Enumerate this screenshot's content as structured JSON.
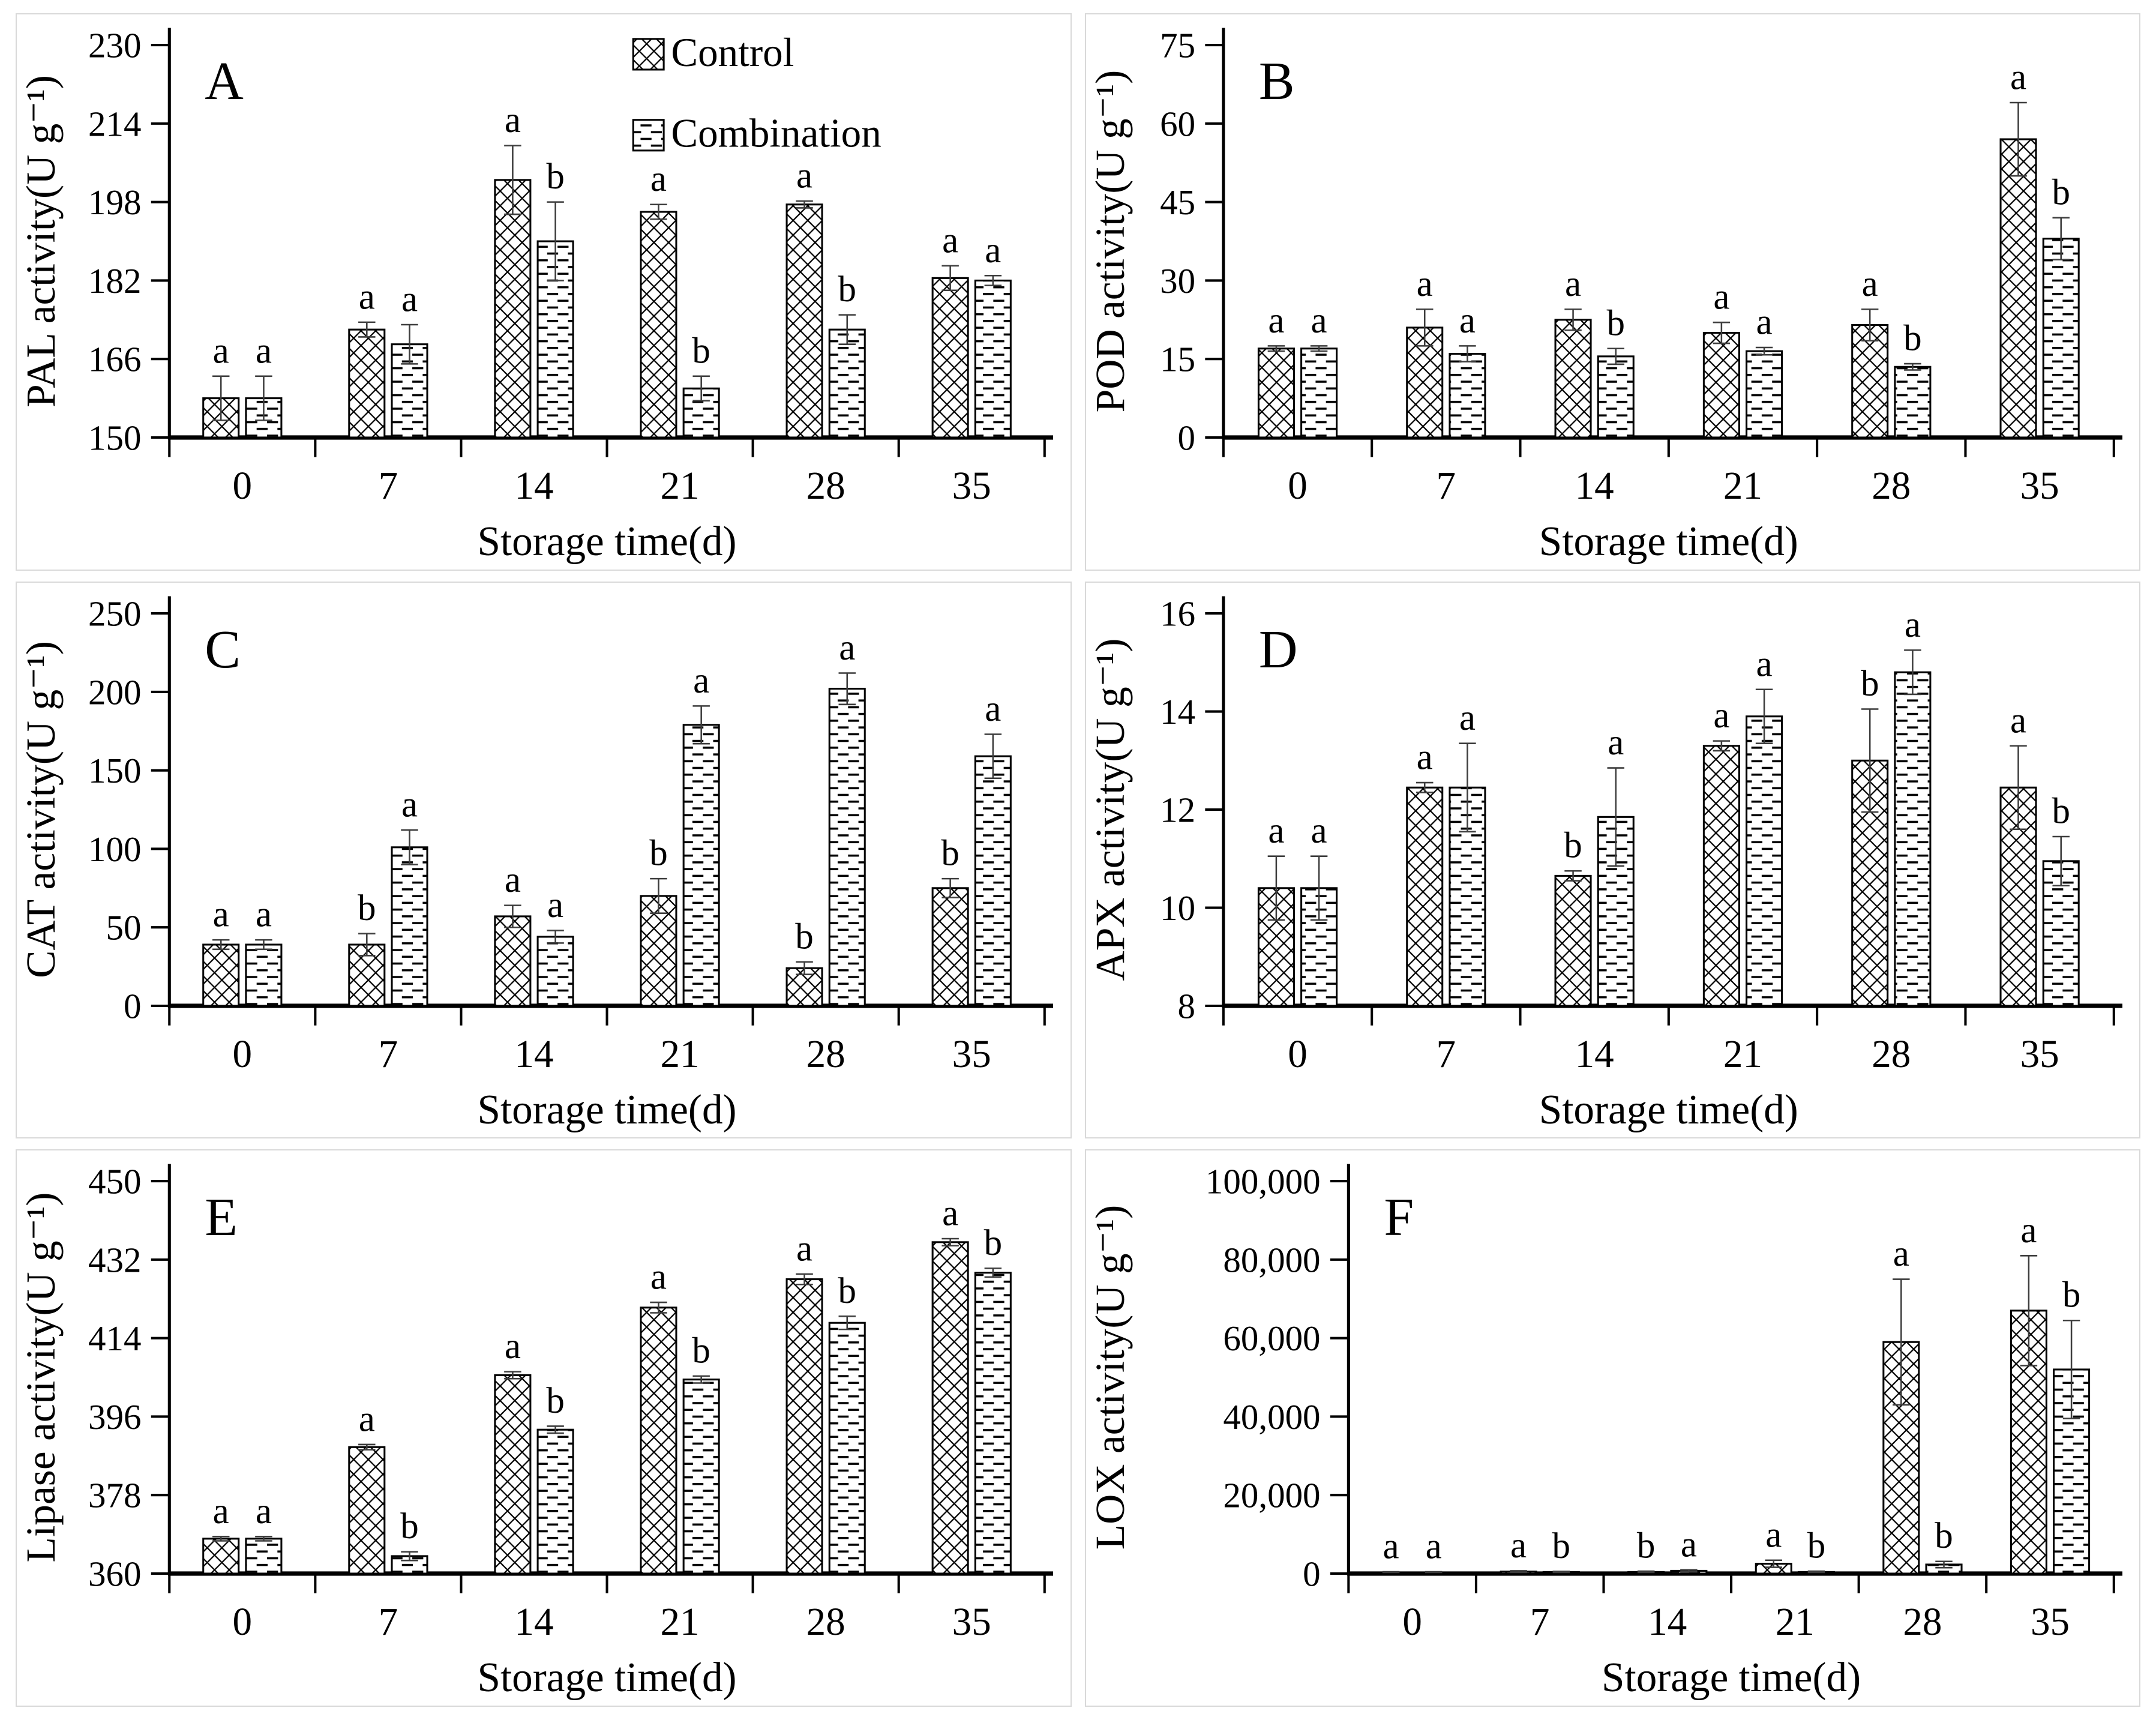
{
  "figure": {
    "xlabel": "Storage time(d)",
    "legend": {
      "position": "top-right-of-panel-A",
      "items": [
        {
          "name": "Control",
          "pattern": "crosshatch"
        },
        {
          "name": "Combination",
          "pattern": "horizontal-dash"
        }
      ]
    },
    "colors": {
      "foreground": "#000000",
      "background": "#ffffff",
      "panel_border": "#d9d9d9",
      "error_bar": "#3d3d3d"
    }
  },
  "chart_data": [
    {
      "type": "bar",
      "panel_label": "A",
      "ylabel": "PAL activity(U g⁻¹)",
      "xlabel": "Storage time(d)",
      "categories": [
        "0",
        "7",
        "14",
        "21",
        "28",
        "35"
      ],
      "ylim": [
        150,
        230
      ],
      "yticks": [
        150,
        166,
        182,
        198,
        214,
        230
      ],
      "ytick_labels": [
        "150",
        "166",
        "182",
        "198",
        "214",
        "230"
      ],
      "grid": false,
      "left_margin": 250,
      "show_legend": true,
      "series": [
        {
          "name": "Control",
          "pattern": "crosshatch",
          "values": [
            158,
            172,
            202.5,
            196,
            197.5,
            182.5
          ],
          "errors": [
            4.5,
            1.5,
            7,
            1.5,
            0.7,
            2.5
          ],
          "letters": [
            "a",
            "a",
            "a",
            "a",
            "a",
            "a"
          ]
        },
        {
          "name": "Combination",
          "pattern": "horizontal-dash",
          "values": [
            158,
            169,
            190,
            160,
            172,
            182
          ],
          "errors": [
            4.5,
            4,
            8,
            2.5,
            3,
            1
          ],
          "letters": [
            "a",
            "a",
            "b",
            "b",
            "b",
            "a"
          ]
        }
      ]
    },
    {
      "type": "bar",
      "panel_label": "B",
      "ylabel": "POD activity(U g⁻¹)",
      "xlabel": "Storage time(d)",
      "categories": [
        "0",
        "7",
        "14",
        "21",
        "28",
        "35"
      ],
      "ylim": [
        0,
        75
      ],
      "yticks": [
        0,
        15,
        30,
        45,
        60,
        75
      ],
      "ytick_labels": [
        "0",
        "15",
        "30",
        "45",
        "60",
        "75"
      ],
      "grid": false,
      "left_margin": 225,
      "show_legend": false,
      "series": [
        {
          "name": "Control",
          "pattern": "crosshatch",
          "values": [
            17,
            21,
            22.5,
            20,
            21.5,
            57
          ],
          "errors": [
            0.5,
            3.5,
            2,
            2,
            3,
            7
          ],
          "letters": [
            "a",
            "a",
            "a",
            "a",
            "a",
            "a"
          ]
        },
        {
          "name": "Combination",
          "pattern": "horizontal-dash",
          "values": [
            17,
            16,
            15.5,
            16.5,
            13.5,
            38
          ],
          "errors": [
            0.5,
            1.5,
            1.5,
            0.7,
            0.6,
            4
          ],
          "letters": [
            "a",
            "a",
            "b",
            "a",
            "b",
            "b"
          ]
        }
      ]
    },
    {
      "type": "bar",
      "panel_label": "C",
      "ylabel": "CAT activity(U g⁻¹)",
      "xlabel": "Storage time(d)",
      "categories": [
        "0",
        "7",
        "14",
        "21",
        "28",
        "35"
      ],
      "ylim": [
        0,
        250
      ],
      "yticks": [
        0,
        50,
        100,
        150,
        200,
        250
      ],
      "ytick_labels": [
        "0",
        "50",
        "100",
        "150",
        "200",
        "250"
      ],
      "grid": false,
      "left_margin": 250,
      "show_legend": false,
      "series": [
        {
          "name": "Control",
          "pattern": "crosshatch",
          "values": [
            39,
            39,
            57,
            70,
            24,
            75
          ],
          "errors": [
            3,
            7,
            7,
            11,
            4,
            6
          ],
          "letters": [
            "a",
            "b",
            "a",
            "b",
            "b",
            "b"
          ]
        },
        {
          "name": "Combination",
          "pattern": "horizontal-dash",
          "values": [
            39,
            101,
            44,
            179,
            202,
            159
          ],
          "errors": [
            3,
            11,
            4,
            12,
            10,
            14
          ],
          "letters": [
            "a",
            "a",
            "a",
            "a",
            "a",
            "a"
          ]
        }
      ]
    },
    {
      "type": "bar",
      "panel_label": "D",
      "ylabel": "APX activity(U g⁻¹)",
      "xlabel": "Storage time(d)",
      "categories": [
        "0",
        "7",
        "14",
        "21",
        "28",
        "35"
      ],
      "ylim": [
        8,
        16
      ],
      "yticks": [
        8,
        10,
        12,
        14,
        16
      ],
      "ytick_labels": [
        "8",
        "10",
        "12",
        "14",
        "16"
      ],
      "grid": false,
      "left_margin": 225,
      "show_legend": false,
      "series": [
        {
          "name": "Control",
          "pattern": "crosshatch",
          "values": [
            10.4,
            12.45,
            10.65,
            13.3,
            13.0,
            12.45
          ],
          "errors": [
            0.65,
            0.1,
            0.1,
            0.1,
            1.05,
            0.85
          ],
          "letters": [
            "a",
            "a",
            "b",
            "a",
            "b",
            "a"
          ]
        },
        {
          "name": "Combination",
          "pattern": "horizontal-dash",
          "values": [
            10.4,
            12.45,
            11.85,
            13.9,
            14.8,
            10.95
          ],
          "errors": [
            0.65,
            0.9,
            1.0,
            0.55,
            0.45,
            0.5
          ],
          "letters": [
            "a",
            "a",
            "a",
            "a",
            "a",
            "b"
          ]
        }
      ]
    },
    {
      "type": "bar",
      "panel_label": "E",
      "ylabel": "Lipase activity(U g⁻¹)",
      "xlabel": "Storage time(d)",
      "categories": [
        "0",
        "7",
        "14",
        "21",
        "28",
        "35"
      ],
      "ylim": [
        360,
        450
      ],
      "yticks": [
        360,
        378,
        396,
        414,
        432,
        450
      ],
      "ytick_labels": [
        "360",
        "378",
        "396",
        "414",
        "432",
        "450"
      ],
      "grid": false,
      "left_margin": 250,
      "show_legend": false,
      "series": [
        {
          "name": "Control",
          "pattern": "crosshatch",
          "values": [
            368,
            389,
            405.5,
            421,
            427.5,
            436
          ],
          "errors": [
            0.5,
            0.6,
            0.8,
            1.2,
            1.2,
            0.8
          ],
          "letters": [
            "a",
            "a",
            "a",
            "a",
            "a",
            "a"
          ]
        },
        {
          "name": "Combination",
          "pattern": "horizontal-dash",
          "values": [
            368,
            364,
            393,
            404.5,
            417.5,
            429
          ],
          "errors": [
            0.5,
            1.0,
            0.8,
            0.8,
            1.5,
            1.0
          ],
          "letters": [
            "a",
            "b",
            "b",
            "b",
            "b",
            "b"
          ]
        }
      ]
    },
    {
      "type": "bar",
      "panel_label": "F",
      "ylabel": "LOX activity(U g⁻¹)",
      "xlabel": "Storage time(d)",
      "categories": [
        "0",
        "7",
        "14",
        "21",
        "28",
        "35"
      ],
      "ylim": [
        0,
        100000
      ],
      "yticks": [
        0,
        20000,
        40000,
        60000,
        80000,
        100000
      ],
      "ytick_labels": [
        "0",
        "20,000",
        "40,000",
        "60,000",
        "80,000",
        "100,000"
      ],
      "grid": false,
      "left_margin": 430,
      "show_legend": false,
      "series": [
        {
          "name": "Control",
          "pattern": "crosshatch",
          "values": [
            300,
            500,
            400,
            2500,
            59000,
            67000
          ],
          "errors": [
            150,
            200,
            200,
            900,
            16000,
            14000
          ],
          "letters": [
            "a",
            "a",
            "b",
            "a",
            "a",
            "a"
          ]
        },
        {
          "name": "Combination",
          "pattern": "horizontal-dash",
          "values": [
            300,
            400,
            700,
            400,
            2300,
            52000
          ],
          "errors": [
            150,
            150,
            250,
            200,
            800,
            12500
          ],
          "letters": [
            "a",
            "b",
            "a",
            "b",
            "b",
            "b"
          ]
        }
      ]
    }
  ]
}
